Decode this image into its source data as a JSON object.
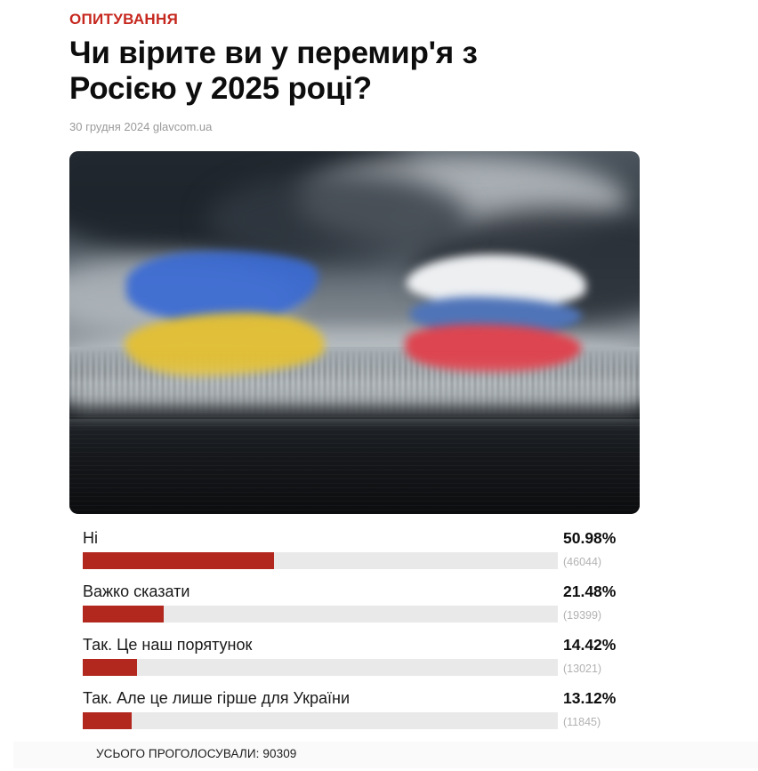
{
  "colors": {
    "accent_red": "#c6281f",
    "bar_red": "#b2281f",
    "bar_track": "#e9e9e9",
    "title_black": "#0d0d0d",
    "meta_gray": "#9a9a9a",
    "count_gray": "#b2b2b2"
  },
  "header": {
    "category": "ОПИТУВАННЯ",
    "title_line1": "Чи вірите ви у перемир'я з",
    "title_line2": "Росією у 2025 році?",
    "meta": "30 грудня 2024 glavcom.ua"
  },
  "hero": {
    "description": "ukraine-and-russia-flags-painted-in-stormy-sky"
  },
  "poll": {
    "options": [
      {
        "label": "Ні",
        "percent_text": "50.98%",
        "count_text": "(46044)",
        "value": 50.98
      },
      {
        "label": "Важко сказати",
        "percent_text": "21.48%",
        "count_text": "(19399)",
        "value": 21.48
      },
      {
        "label": "Так. Це наш порятунок",
        "percent_text": "14.42%",
        "count_text": "(13021)",
        "value": 14.42
      },
      {
        "label": "Так. Але це лише гірше для України",
        "percent_text": "13.12%",
        "count_text": "(11845)",
        "value": 13.12
      }
    ]
  },
  "footer": {
    "total_text": "УСЬОГО ПРОГОЛОСУВАЛИ: 90309"
  },
  "chart_data": {
    "type": "bar",
    "orientation": "horizontal",
    "title": "Чи вірите ви у перемир'я з Росією у 2025 році?",
    "categories": [
      "Ні",
      "Важко сказати",
      "Так. Це наш порятунок",
      "Так. Але це лише гірше для України"
    ],
    "values": [
      50.98,
      21.48,
      14.42,
      13.12
    ],
    "votes": [
      46044,
      19399,
      13021,
      11845
    ],
    "total_votes": 90309,
    "unit": "%",
    "bar_color": "#b2281f",
    "track_color": "#e9e9e9",
    "fill_scale": 0.79,
    "legend": "none",
    "grid": "off"
  }
}
